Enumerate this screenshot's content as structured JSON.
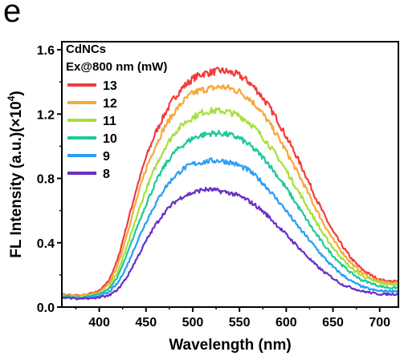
{
  "panel_label": "e",
  "colors": {
    "13": "#f03c3c",
    "12": "#f5a93a",
    "11": "#a6e03a",
    "10": "#1fc99a",
    "9": "#2a9df4",
    "8": "#6a2fc4"
  },
  "chart_data": {
    "type": "line",
    "title": "",
    "xlabel": "Wavelength (nm)",
    "ylabel_main": "FL Intensity (a.u.)(×10",
    "ylabel_sup": "4",
    "ylabel_close": ")",
    "xlim": [
      360,
      720
    ],
    "ylim": [
      0.0,
      1.65
    ],
    "xticks": [
      400,
      450,
      500,
      550,
      600,
      650,
      700
    ],
    "xtick_labels": [
      "400",
      "450",
      "500",
      "550",
      "600",
      "650",
      "700"
    ],
    "yticks": [
      0.0,
      0.4,
      0.8,
      1.2,
      1.6
    ],
    "ytick_labels": [
      "0.0",
      "0.4",
      "0.8",
      "1.2",
      "1.6"
    ],
    "legend_title_1": "CdNCs",
    "legend_title_2": "Ex@800 nm (mW)",
    "legend_position": "top-left",
    "x": [
      360,
      380,
      400,
      410,
      420,
      430,
      440,
      450,
      460,
      470,
      480,
      490,
      500,
      510,
      520,
      530,
      540,
      550,
      560,
      570,
      580,
      590,
      600,
      610,
      620,
      630,
      640,
      650,
      660,
      670,
      680,
      690,
      700,
      710,
      720
    ],
    "series": [
      {
        "name": "13",
        "values": [
          0.08,
          0.07,
          0.1,
          0.16,
          0.3,
          0.52,
          0.74,
          0.93,
          1.08,
          1.2,
          1.3,
          1.37,
          1.42,
          1.45,
          1.46,
          1.47,
          1.46,
          1.44,
          1.4,
          1.34,
          1.26,
          1.17,
          1.06,
          0.95,
          0.83,
          0.7,
          0.58,
          0.47,
          0.38,
          0.3,
          0.24,
          0.2,
          0.17,
          0.16,
          0.16
        ]
      },
      {
        "name": "12",
        "values": [
          0.08,
          0.07,
          0.09,
          0.14,
          0.26,
          0.46,
          0.67,
          0.86,
          1.0,
          1.12,
          1.21,
          1.28,
          1.33,
          1.35,
          1.36,
          1.37,
          1.36,
          1.34,
          1.3,
          1.24,
          1.16,
          1.07,
          0.97,
          0.86,
          0.75,
          0.63,
          0.52,
          0.42,
          0.34,
          0.27,
          0.22,
          0.18,
          0.16,
          0.15,
          0.15
        ]
      },
      {
        "name": "11",
        "values": [
          0.07,
          0.06,
          0.08,
          0.12,
          0.22,
          0.38,
          0.56,
          0.73,
          0.87,
          0.99,
          1.08,
          1.14,
          1.18,
          1.21,
          1.22,
          1.22,
          1.21,
          1.19,
          1.15,
          1.09,
          1.02,
          0.94,
          0.85,
          0.75,
          0.65,
          0.55,
          0.45,
          0.37,
          0.3,
          0.24,
          0.2,
          0.17,
          0.15,
          0.14,
          0.14
        ]
      },
      {
        "name": "10",
        "values": [
          0.07,
          0.06,
          0.08,
          0.11,
          0.19,
          0.33,
          0.49,
          0.64,
          0.77,
          0.88,
          0.96,
          1.01,
          1.05,
          1.07,
          1.08,
          1.08,
          1.07,
          1.05,
          1.01,
          0.96,
          0.9,
          0.82,
          0.74,
          0.65,
          0.56,
          0.47,
          0.39,
          0.32,
          0.26,
          0.21,
          0.17,
          0.15,
          0.13,
          0.12,
          0.12
        ]
      },
      {
        "name": "9",
        "values": [
          0.06,
          0.05,
          0.07,
          0.09,
          0.15,
          0.26,
          0.4,
          0.53,
          0.64,
          0.74,
          0.81,
          0.86,
          0.89,
          0.9,
          0.91,
          0.91,
          0.9,
          0.88,
          0.85,
          0.8,
          0.74,
          0.67,
          0.6,
          0.52,
          0.45,
          0.38,
          0.31,
          0.25,
          0.2,
          0.16,
          0.13,
          0.11,
          0.1,
          0.1,
          0.1
        ]
      },
      {
        "name": "8",
        "values": [
          0.06,
          0.05,
          0.06,
          0.07,
          0.11,
          0.19,
          0.3,
          0.41,
          0.51,
          0.59,
          0.65,
          0.69,
          0.71,
          0.73,
          0.73,
          0.72,
          0.71,
          0.69,
          0.66,
          0.62,
          0.57,
          0.51,
          0.45,
          0.39,
          0.33,
          0.27,
          0.22,
          0.18,
          0.14,
          0.12,
          0.1,
          0.09,
          0.08,
          0.08,
          0.08
        ]
      }
    ]
  }
}
